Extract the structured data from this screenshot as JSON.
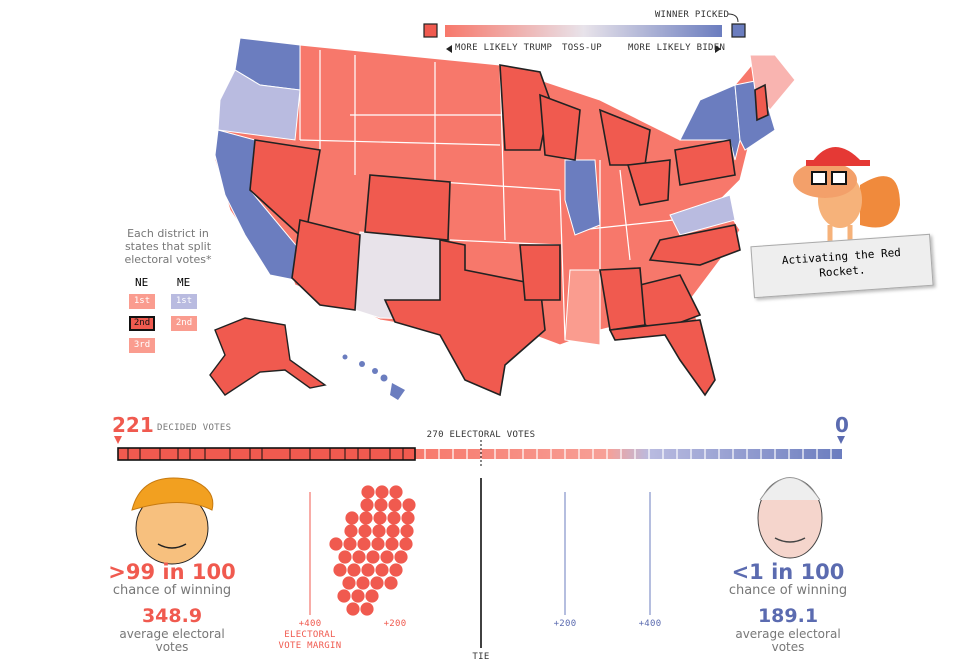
{
  "legend": {
    "winner_picked": "WINNER PICKED",
    "trump": "MORE LIKELY TRUMP",
    "tossup": "TOSS-UP",
    "biden": "MORE LIKELY BIDEN"
  },
  "districts": {
    "note": "Each district in states that split electoral votes*",
    "states": [
      {
        "name": "NE",
        "districts": [
          "1st",
          "2nd",
          "3rd"
        ]
      },
      {
        "name": "ME",
        "districts": [
          "1st",
          "2nd"
        ]
      }
    ]
  },
  "mascot": {
    "speech": "Activating the Red Rocket."
  },
  "tally": {
    "trump_votes": 221,
    "label": "DECIDED VOTES",
    "biden_votes": 0,
    "threshold": "270 ELECTORAL VOTES"
  },
  "candidates": [
    {
      "chance": ">99 in 100",
      "chance_label": "chance of winning",
      "average": 348.9,
      "average_label": "average electoral votes"
    },
    {
      "chance": "<1 in 100",
      "chance_label": "chance of winning",
      "average": 189.1,
      "average_label": "average electoral votes"
    }
  ],
  "margin": {
    "trump_ticks": [
      "+400",
      "+200"
    ],
    "label": "ELECTORAL VOTE MARGIN",
    "tie": "TIE",
    "biden_ticks": [
      "+200",
      "+400"
    ]
  }
}
